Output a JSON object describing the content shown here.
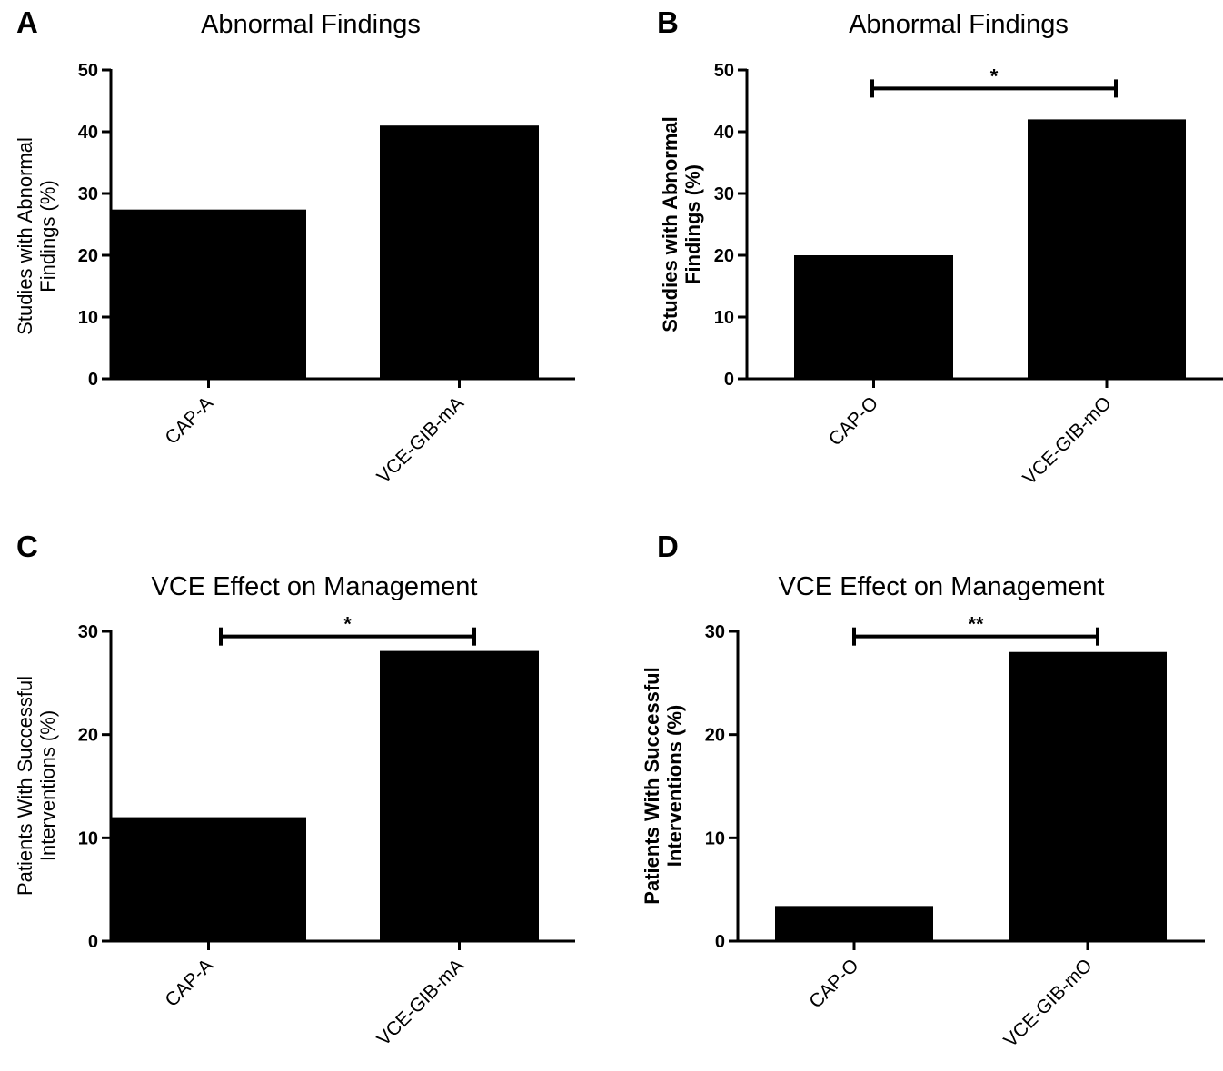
{
  "chart_data": [
    {
      "panel": "A",
      "type": "bar",
      "title": "Abnormal Findings",
      "ylabel": [
        "Studies with Abnormal",
        "Findings (%)"
      ],
      "ylabel_bold": false,
      "categories": [
        "CAP-A",
        "VCE-GIB-mA"
      ],
      "values": [
        27.4,
        41.0
      ],
      "ylim": [
        0,
        50
      ],
      "yticks": [
        0,
        10,
        20,
        30,
        40,
        50
      ],
      "significance": null
    },
    {
      "panel": "B",
      "type": "bar",
      "title": "Abnormal Findings",
      "ylabel": [
        "Studies with Abnormal",
        "Findings (%)"
      ],
      "ylabel_bold": true,
      "categories": [
        "CAP-O",
        "VCE-GIB-mO"
      ],
      "values": [
        20.0,
        42.0
      ],
      "ylim": [
        0,
        50
      ],
      "yticks": [
        0,
        10,
        20,
        30,
        40,
        50
      ],
      "significance": {
        "label": "*",
        "at": 47
      }
    },
    {
      "panel": "C",
      "type": "bar",
      "title": "VCE Effect on Management",
      "ylabel": [
        "Patients  With Successful",
        "Interventions  (%)"
      ],
      "ylabel_bold": false,
      "categories": [
        "CAP-A",
        "VCE-GIB-mA"
      ],
      "values": [
        12.0,
        28.1
      ],
      "ylim": [
        0,
        30
      ],
      "yticks": [
        0,
        10,
        20,
        30
      ],
      "significance": {
        "label": "*",
        "at": 29.5
      }
    },
    {
      "panel": "D",
      "type": "bar",
      "title": "VCE Effect on Management",
      "ylabel": [
        "Patients  With Successful",
        "Interventions  (%)"
      ],
      "ylabel_bold": true,
      "categories": [
        "CAP-O",
        "VCE-GIB-mO"
      ],
      "values": [
        3.4,
        28.0
      ],
      "ylim": [
        0,
        30
      ],
      "yticks": [
        0,
        10,
        20,
        30
      ],
      "significance": {
        "label": "**",
        "at": 29.5
      }
    }
  ]
}
